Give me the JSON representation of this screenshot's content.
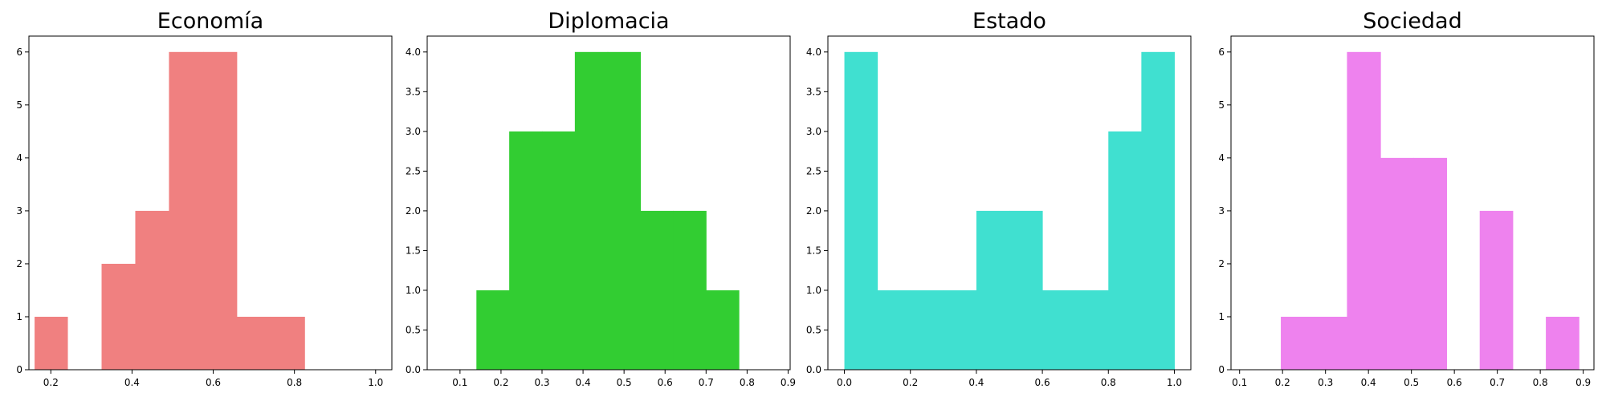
{
  "chart_data": [
    {
      "type": "bar",
      "title": "Economía",
      "color": "#F08080",
      "xlim": [
        0.146,
        1.04
      ],
      "ylim": [
        0,
        6.3
      ],
      "xticks": [
        0.2,
        0.4,
        0.6,
        0.8,
        1.0
      ],
      "xtick_labels": [
        "0.2",
        "0.4",
        "0.6",
        "0.8",
        "1.0"
      ],
      "yticks": [
        0,
        1,
        2,
        3,
        4,
        5,
        6
      ],
      "ytick_labels": [
        "0",
        "1",
        "2",
        "3",
        "4",
        "5",
        "6"
      ],
      "bins": [
        {
          "x0": 0.16,
          "x1": 0.241,
          "count": 1
        },
        {
          "x0": 0.241,
          "x1": 0.325,
          "count": 0
        },
        {
          "x0": 0.325,
          "x1": 0.408,
          "count": 2
        },
        {
          "x0": 0.408,
          "x1": 0.491,
          "count": 3
        },
        {
          "x0": 0.491,
          "x1": 0.575,
          "count": 6
        },
        {
          "x0": 0.575,
          "x1": 0.658,
          "count": 6
        },
        {
          "x0": 0.658,
          "x1": 0.741,
          "count": 1
        },
        {
          "x0": 0.741,
          "x1": 0.825,
          "count": 1
        }
      ]
    },
    {
      "type": "bar",
      "title": "Diplomacia",
      "color": "#32CD32",
      "xlim": [
        0.02,
        0.905
      ],
      "ylim": [
        0,
        4.2
      ],
      "xticks": [
        0.1,
        0.2,
        0.3,
        0.4,
        0.5,
        0.6,
        0.7,
        0.8,
        0.9
      ],
      "xtick_labels": [
        "0.1",
        "0.2",
        "0.3",
        "0.4",
        "0.5",
        "0.6",
        "0.7",
        "0.8",
        "0.9"
      ],
      "yticks": [
        0,
        0.5,
        1,
        1.5,
        2,
        2.5,
        3,
        3.5,
        4
      ],
      "ytick_labels": [
        "0.0",
        "0.5",
        "1.0",
        "1.5",
        "2.0",
        "2.5",
        "3.0",
        "3.5",
        "4.0"
      ],
      "bins": [
        {
          "x0": 0.14,
          "x1": 0.22,
          "count": 1
        },
        {
          "x0": 0.22,
          "x1": 0.3,
          "count": 3
        },
        {
          "x0": 0.3,
          "x1": 0.38,
          "count": 3
        },
        {
          "x0": 0.38,
          "x1": 0.46,
          "count": 4
        },
        {
          "x0": 0.46,
          "x1": 0.54,
          "count": 4
        },
        {
          "x0": 0.54,
          "x1": 0.62,
          "count": 2
        },
        {
          "x0": 0.62,
          "x1": 0.7,
          "count": 2
        },
        {
          "x0": 0.7,
          "x1": 0.78,
          "count": 1
        }
      ]
    },
    {
      "type": "bar",
      "title": "Estado",
      "color": "#40E0D0",
      "xlim": [
        -0.05,
        1.05
      ],
      "ylim": [
        0,
        4.2
      ],
      "xticks": [
        0.0,
        0.2,
        0.4,
        0.6,
        0.8,
        1.0
      ],
      "xtick_labels": [
        "0.0",
        "0.2",
        "0.4",
        "0.6",
        "0.8",
        "1.0"
      ],
      "yticks": [
        0,
        0.5,
        1,
        1.5,
        2,
        2.5,
        3,
        3.5,
        4
      ],
      "ytick_labels": [
        "0.0",
        "0.5",
        "1.0",
        "1.5",
        "2.0",
        "2.5",
        "3.0",
        "3.5",
        "4.0"
      ],
      "bins": [
        {
          "x0": 0.0,
          "x1": 0.1,
          "count": 4
        },
        {
          "x0": 0.1,
          "x1": 0.2,
          "count": 1
        },
        {
          "x0": 0.2,
          "x1": 0.3,
          "count": 1
        },
        {
          "x0": 0.3,
          "x1": 0.4,
          "count": 1
        },
        {
          "x0": 0.4,
          "x1": 0.5,
          "count": 2
        },
        {
          "x0": 0.5,
          "x1": 0.6,
          "count": 2
        },
        {
          "x0": 0.6,
          "x1": 0.7,
          "count": 1
        },
        {
          "x0": 0.7,
          "x1": 0.8,
          "count": 1
        },
        {
          "x0": 0.8,
          "x1": 0.9,
          "count": 3
        },
        {
          "x0": 0.9,
          "x1": 1.0,
          "count": 4
        }
      ]
    },
    {
      "type": "bar",
      "title": "Sociedad",
      "color": "#EE82EE",
      "xlim": [
        0.08,
        0.925
      ],
      "ylim": [
        0,
        6.3
      ],
      "xticks": [
        0.1,
        0.2,
        0.3,
        0.4,
        0.5,
        0.6,
        0.7,
        0.8,
        0.9
      ],
      "xtick_labels": [
        "0.1",
        "0.2",
        "0.3",
        "0.4",
        "0.5",
        "0.6",
        "0.7",
        "0.8",
        "0.9"
      ],
      "yticks": [
        0,
        1,
        2,
        3,
        4,
        5,
        6
      ],
      "ytick_labels": [
        "0",
        "1",
        "2",
        "3",
        "4",
        "5",
        "6"
      ],
      "bins": [
        {
          "x0": 0.196,
          "x1": 0.273,
          "count": 1
        },
        {
          "x0": 0.273,
          "x1": 0.35,
          "count": 1
        },
        {
          "x0": 0.35,
          "x1": 0.428,
          "count": 6
        },
        {
          "x0": 0.428,
          "x1": 0.505,
          "count": 4
        },
        {
          "x0": 0.505,
          "x1": 0.582,
          "count": 4
        },
        {
          "x0": 0.582,
          "x1": 0.659,
          "count": 0
        },
        {
          "x0": 0.659,
          "x1": 0.736,
          "count": 3
        },
        {
          "x0": 0.736,
          "x1": 0.813,
          "count": 0
        },
        {
          "x0": 0.813,
          "x1": 0.89,
          "count": 1
        }
      ]
    }
  ]
}
